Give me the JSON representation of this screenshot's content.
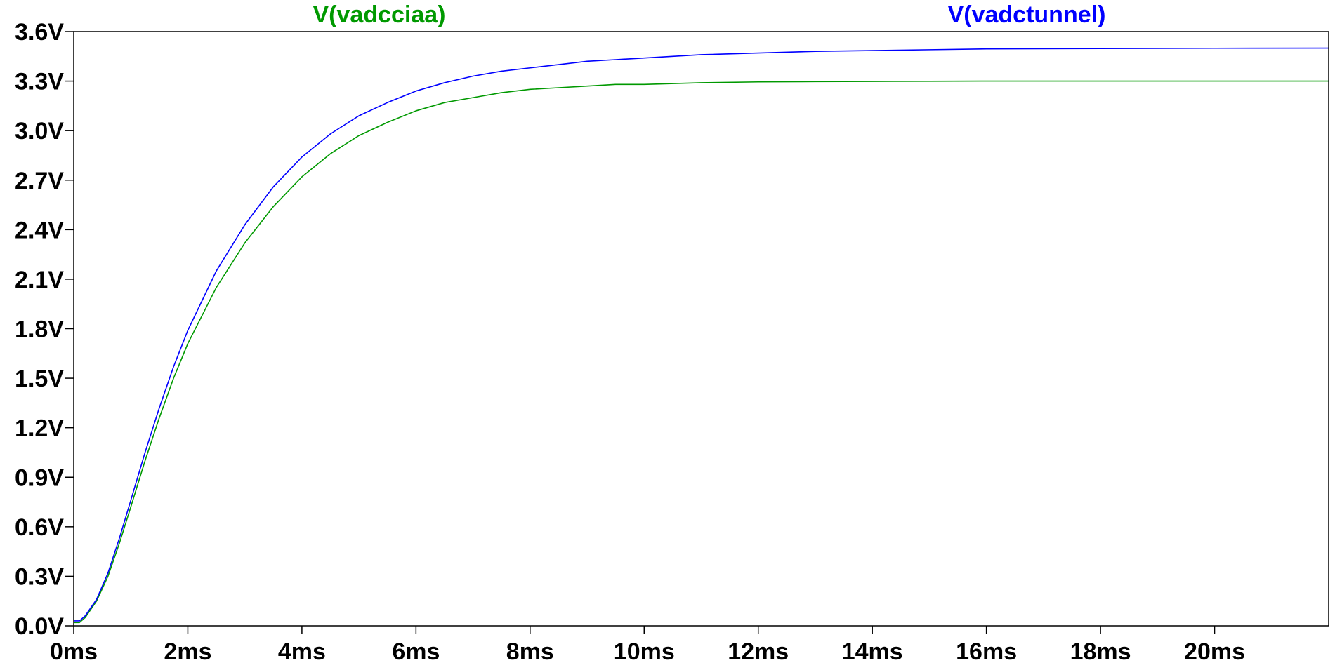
{
  "chart_data": {
    "type": "line",
    "title": "",
    "xlabel": "",
    "ylabel": "",
    "xlim": [
      0,
      22
    ],
    "ylim": [
      0,
      3.6
    ],
    "grid": false,
    "legend_placement": "top",
    "x_ticks": [
      {
        "value": 0,
        "label": "0ms"
      },
      {
        "value": 2,
        "label": "2ms"
      },
      {
        "value": 4,
        "label": "4ms"
      },
      {
        "value": 6,
        "label": "6ms"
      },
      {
        "value": 8,
        "label": "8ms"
      },
      {
        "value": 10,
        "label": "10ms"
      },
      {
        "value": 12,
        "label": "12ms"
      },
      {
        "value": 14,
        "label": "14ms"
      },
      {
        "value": 16,
        "label": "16ms"
      },
      {
        "value": 18,
        "label": "18ms"
      },
      {
        "value": 20,
        "label": "20ms"
      }
    ],
    "y_ticks": [
      {
        "value": 0.0,
        "label": "0.0V"
      },
      {
        "value": 0.3,
        "label": "0.3V"
      },
      {
        "value": 0.6,
        "label": "0.6V"
      },
      {
        "value": 0.9,
        "label": "0.9V"
      },
      {
        "value": 1.2,
        "label": "1.2V"
      },
      {
        "value": 1.5,
        "label": "1.5V"
      },
      {
        "value": 1.8,
        "label": "1.8V"
      },
      {
        "value": 2.1,
        "label": "2.1V"
      },
      {
        "value": 2.4,
        "label": "2.4V"
      },
      {
        "value": 2.7,
        "label": "2.7V"
      },
      {
        "value": 3.0,
        "label": "3.0V"
      },
      {
        "value": 3.3,
        "label": "3.3V"
      },
      {
        "value": 3.6,
        "label": "3.6V"
      }
    ],
    "series": [
      {
        "name": "V(vadcciaa)",
        "color": "#009900",
        "x": [
          0,
          0.1,
          0.2,
          0.4,
          0.6,
          0.8,
          1.0,
          1.25,
          1.5,
          1.75,
          2.0,
          2.5,
          3.0,
          3.5,
          4.0,
          4.5,
          5.0,
          5.5,
          6.0,
          6.5,
          7.0,
          7.5,
          8.0,
          8.5,
          9.0,
          9.5,
          10.0,
          11.0,
          12.0,
          13.0,
          14.0,
          15.0,
          16.0,
          18.0,
          20.0,
          22.0
        ],
        "y": [
          0.02,
          0.02,
          0.05,
          0.15,
          0.3,
          0.5,
          0.72,
          1.0,
          1.26,
          1.5,
          1.71,
          2.05,
          2.32,
          2.54,
          2.72,
          2.86,
          2.97,
          3.05,
          3.12,
          3.17,
          3.2,
          3.23,
          3.25,
          3.26,
          3.27,
          3.28,
          3.28,
          3.29,
          3.295,
          3.297,
          3.298,
          3.299,
          3.3,
          3.3,
          3.3,
          3.3
        ]
      },
      {
        "name": "V(vadctunnel)",
        "color": "#0000ff",
        "x": [
          0,
          0.1,
          0.2,
          0.4,
          0.6,
          0.8,
          1.0,
          1.25,
          1.5,
          1.75,
          2.0,
          2.5,
          3.0,
          3.5,
          4.0,
          4.5,
          5.0,
          5.5,
          6.0,
          6.5,
          7.0,
          7.5,
          8.0,
          8.5,
          9.0,
          9.5,
          10.0,
          11.0,
          12.0,
          13.0,
          14.0,
          15.0,
          16.0,
          18.0,
          20.0,
          22.0
        ],
        "y": [
          0.03,
          0.03,
          0.06,
          0.16,
          0.32,
          0.53,
          0.76,
          1.05,
          1.32,
          1.57,
          1.79,
          2.15,
          2.43,
          2.66,
          2.84,
          2.98,
          3.09,
          3.17,
          3.24,
          3.29,
          3.33,
          3.36,
          3.38,
          3.4,
          3.42,
          3.43,
          3.44,
          3.46,
          3.47,
          3.48,
          3.485,
          3.49,
          3.495,
          3.497,
          3.499,
          3.5
        ]
      }
    ]
  }
}
